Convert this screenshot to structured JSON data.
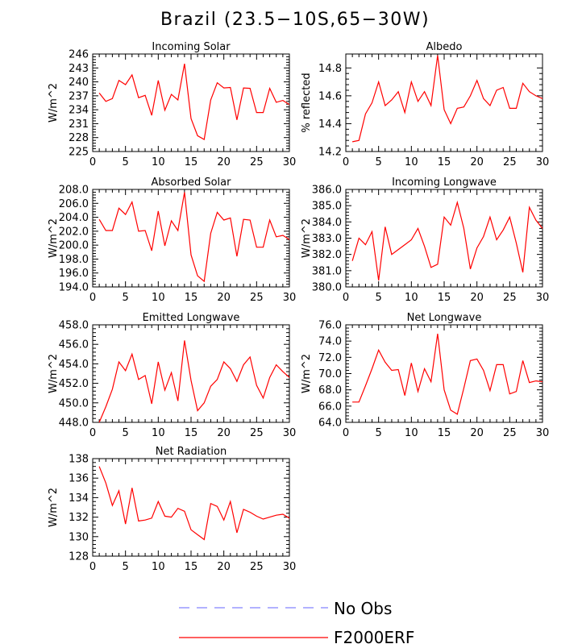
{
  "figure_title": "Brazil (23.5−10S,65−30W)",
  "colors": {
    "model": "#ff0000",
    "obs": "#9999ff",
    "axis": "#000000"
  },
  "legend": [
    {
      "label": "No Obs",
      "style": "dashed",
      "color": "#9999ff"
    },
    {
      "label": "F2000ERF",
      "style": "solid",
      "color": "#ff0000"
    }
  ],
  "chart_data": [
    {
      "type": "line",
      "title": "Incoming Solar",
      "ylabel": "W/m^2",
      "xlim": [
        0,
        30
      ],
      "ylim": [
        225,
        246
      ],
      "yticks": [
        225,
        228,
        231,
        234,
        237,
        240,
        243,
        246
      ],
      "ytick_labels": [
        "225",
        "228",
        "231",
        "234",
        "237",
        "240",
        "243",
        "246"
      ],
      "xticks": [
        0,
        5,
        10,
        15,
        20,
        25,
        30
      ],
      "xtick_labels": [
        "0",
        "5",
        "10",
        "15",
        "20",
        "25",
        "30"
      ],
      "series": [
        {
          "x": [
            1,
            2,
            3,
            4,
            5,
            6,
            7,
            8,
            9,
            10,
            11,
            12,
            13,
            14,
            15,
            16,
            17,
            18,
            19,
            20,
            21,
            22,
            23,
            24,
            25,
            26,
            27,
            28,
            29,
            30
          ],
          "y": [
            237.6,
            235.8,
            236.4,
            240.3,
            239.4,
            241.5,
            236.6,
            237.1,
            232.8,
            240.3,
            233.9,
            237.3,
            236.1,
            243.9,
            232.1,
            228.4,
            227.6,
            236.1,
            239.8,
            238.7,
            238.8,
            231.8,
            238.7,
            238.6,
            233.4,
            233.4,
            238.6,
            235.6,
            236.0,
            235.1
          ]
        }
      ]
    },
    {
      "type": "line",
      "title": "Albedo",
      "ylabel": "% reflected",
      "xlim": [
        0,
        30
      ],
      "ylim": [
        14.2,
        14.9
      ],
      "yticks": [
        14.2,
        14.4,
        14.6,
        14.8
      ],
      "ytick_labels": [
        "14.2",
        "14.4",
        "14.6",
        "14.8"
      ],
      "xticks": [
        0,
        5,
        10,
        15,
        20,
        25,
        30
      ],
      "xtick_labels": [
        "0",
        "5",
        "10",
        "15",
        "20",
        "25",
        "30"
      ],
      "series": [
        {
          "x": [
            1,
            2,
            3,
            4,
            5,
            6,
            7,
            8,
            9,
            10,
            11,
            12,
            13,
            14,
            15,
            16,
            17,
            18,
            19,
            20,
            21,
            22,
            23,
            24,
            25,
            26,
            27,
            28,
            29,
            30
          ],
          "y": [
            14.27,
            14.28,
            14.47,
            14.55,
            14.7,
            14.53,
            14.57,
            14.63,
            14.48,
            14.7,
            14.56,
            14.63,
            14.53,
            14.89,
            14.5,
            14.4,
            14.51,
            14.52,
            14.6,
            14.71,
            14.58,
            14.53,
            14.64,
            14.66,
            14.51,
            14.51,
            14.69,
            14.63,
            14.6,
            14.58
          ]
        }
      ]
    },
    {
      "type": "line",
      "title": "Absorbed Solar",
      "ylabel": "W/m^2",
      "xlim": [
        0,
        30
      ],
      "ylim": [
        194.0,
        208.0
      ],
      "yticks": [
        194,
        196,
        198,
        200,
        202,
        204,
        206,
        208
      ],
      "ytick_labels": [
        "194.0",
        "196.0",
        "198.0",
        "200.0",
        "202.0",
        "204.0",
        "206.0",
        "208.0"
      ],
      "xticks": [
        0,
        5,
        10,
        15,
        20,
        25,
        30
      ],
      "xtick_labels": [
        "0",
        "5",
        "10",
        "15",
        "20",
        "25",
        "30"
      ],
      "series": [
        {
          "x": [
            1,
            2,
            3,
            4,
            5,
            6,
            7,
            8,
            9,
            10,
            11,
            12,
            13,
            14,
            15,
            16,
            17,
            18,
            19,
            20,
            21,
            22,
            23,
            24,
            25,
            26,
            27,
            28,
            29,
            30
          ],
          "y": [
            203.7,
            202.1,
            202.1,
            205.3,
            204.4,
            206.2,
            202.0,
            202.1,
            199.2,
            204.9,
            199.9,
            203.5,
            202.1,
            207.6,
            198.6,
            195.6,
            194.8,
            201.7,
            204.7,
            203.6,
            203.9,
            198.4,
            203.7,
            203.6,
            199.7,
            199.7,
            203.6,
            201.2,
            201.4,
            200.8
          ]
        }
      ]
    },
    {
      "type": "line",
      "title": "Incoming Longwave",
      "ylabel": "W/m^2",
      "xlim": [
        0,
        30
      ],
      "ylim": [
        380.0,
        386.0
      ],
      "yticks": [
        380,
        381,
        382,
        383,
        384,
        385,
        386
      ],
      "ytick_labels": [
        "380.0",
        "381.0",
        "382.0",
        "383.0",
        "384.0",
        "385.0",
        "386.0"
      ],
      "xticks": [
        0,
        5,
        10,
        15,
        20,
        25,
        30
      ],
      "xtick_labels": [
        "0",
        "5",
        "10",
        "15",
        "20",
        "25",
        "30"
      ],
      "series": [
        {
          "x": [
            1,
            2,
            3,
            4,
            5,
            6,
            7,
            8,
            9,
            10,
            11,
            12,
            13,
            14,
            15,
            16,
            17,
            18,
            19,
            20,
            21,
            22,
            23,
            24,
            25,
            26,
            27,
            28,
            29,
            30
          ],
          "y": [
            381.6,
            383.0,
            382.6,
            383.4,
            380.4,
            383.7,
            382.0,
            382.3,
            382.6,
            382.9,
            383.6,
            382.5,
            381.2,
            381.4,
            384.3,
            383.8,
            385.2,
            383.6,
            381.1,
            382.4,
            383.1,
            384.3,
            382.9,
            383.5,
            384.3,
            382.7,
            380.9,
            384.9,
            384.1,
            383.6
          ]
        }
      ]
    },
    {
      "type": "line",
      "title": "Emitted Longwave",
      "ylabel": "W/m^2",
      "xlim": [
        0,
        30
      ],
      "ylim": [
        448.0,
        458.0
      ],
      "yticks": [
        448,
        450,
        452,
        454,
        456,
        458
      ],
      "ytick_labels": [
        "448.0",
        "450.0",
        "452.0",
        "454.0",
        "456.0",
        "458.0"
      ],
      "xticks": [
        0,
        5,
        10,
        15,
        20,
        25,
        30
      ],
      "xtick_labels": [
        "0",
        "5",
        "10",
        "15",
        "20",
        "25",
        "30"
      ],
      "series": [
        {
          "x": [
            1,
            2,
            3,
            4,
            5,
            6,
            7,
            8,
            9,
            10,
            11,
            12,
            13,
            14,
            15,
            16,
            17,
            18,
            19,
            20,
            21,
            22,
            23,
            24,
            25,
            26,
            27,
            28,
            29,
            30
          ],
          "y": [
            448.0,
            449.6,
            451.4,
            454.2,
            453.3,
            455.0,
            452.4,
            452.8,
            449.9,
            454.2,
            451.3,
            453.1,
            450.2,
            456.4,
            452.3,
            449.2,
            450.0,
            451.7,
            452.4,
            454.2,
            453.5,
            452.2,
            453.9,
            454.7,
            451.8,
            450.5,
            452.6,
            453.9,
            453.2,
            452.6
          ]
        }
      ]
    },
    {
      "type": "line",
      "title": "Net Longwave",
      "ylabel": "W/m^2",
      "xlim": [
        0,
        30
      ],
      "ylim": [
        64.0,
        76.0
      ],
      "yticks": [
        64,
        66,
        68,
        70,
        72,
        74,
        76
      ],
      "ytick_labels": [
        "64.0",
        "66.0",
        "68.0",
        "70.0",
        "72.0",
        "74.0",
        "76.0"
      ],
      "xticks": [
        0,
        5,
        10,
        15,
        20,
        25,
        30
      ],
      "xtick_labels": [
        "0",
        "5",
        "10",
        "15",
        "20",
        "25",
        "30"
      ],
      "series": [
        {
          "x": [
            1,
            2,
            3,
            4,
            5,
            6,
            7,
            8,
            9,
            10,
            11,
            12,
            13,
            14,
            15,
            16,
            17,
            18,
            19,
            20,
            21,
            22,
            23,
            24,
            25,
            26,
            27,
            28,
            29,
            30
          ],
          "y": [
            66.5,
            66.5,
            68.5,
            70.6,
            72.9,
            71.4,
            70.4,
            70.5,
            67.3,
            71.3,
            67.8,
            70.6,
            69.0,
            74.9,
            68.0,
            65.5,
            65.0,
            68.2,
            71.6,
            71.8,
            70.4,
            67.9,
            71.1,
            71.1,
            67.5,
            67.8,
            71.6,
            68.9,
            69.1,
            69.0
          ]
        }
      ]
    },
    {
      "type": "line",
      "title": "Net Radiation",
      "ylabel": "W/m^2",
      "xlim": [
        0,
        30
      ],
      "ylim": [
        128,
        138
      ],
      "yticks": [
        128,
        130,
        132,
        134,
        136,
        138
      ],
      "ytick_labels": [
        "128",
        "130",
        "132",
        "134",
        "136",
        "138"
      ],
      "xticks": [
        0,
        5,
        10,
        15,
        20,
        25,
        30
      ],
      "xtick_labels": [
        "0",
        "5",
        "10",
        "15",
        "20",
        "25",
        "30"
      ],
      "series": [
        {
          "x": [
            1,
            2,
            3,
            4,
            5,
            6,
            7,
            8,
            9,
            10,
            11,
            12,
            13,
            14,
            15,
            16,
            17,
            18,
            19,
            20,
            21,
            22,
            23,
            24,
            25,
            26,
            27,
            28,
            29,
            30
          ],
          "y": [
            137.2,
            135.5,
            133.2,
            134.7,
            131.3,
            135.0,
            131.6,
            131.7,
            131.9,
            133.6,
            132.1,
            132.0,
            132.9,
            132.6,
            130.7,
            130.2,
            129.7,
            133.4,
            133.1,
            131.7,
            133.6,
            130.4,
            132.8,
            132.5,
            132.1,
            131.8,
            132.0,
            132.2,
            132.3,
            131.9
          ]
        }
      ]
    }
  ]
}
